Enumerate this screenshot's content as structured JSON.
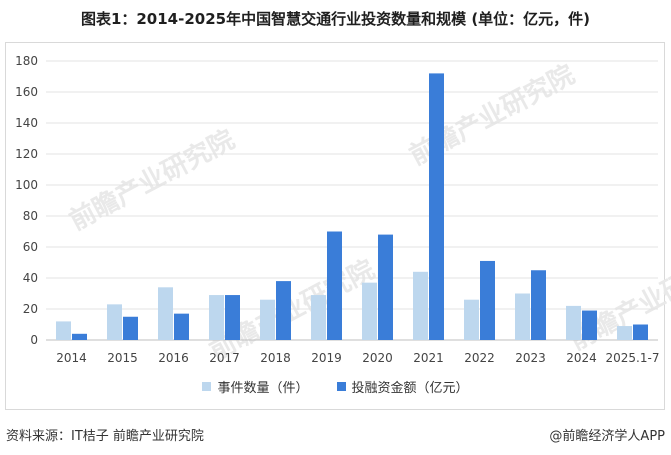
{
  "header": {
    "title": "图表1：2014-2025年中国智慧交通行业投资数量和规模 (单位：亿元，件)"
  },
  "footer": {
    "source": "资料来源：IT桔子 前瞻产业研究院",
    "brand": "@前瞻经济学人APP"
  },
  "watermark": {
    "text": "前瞻产业研究院"
  },
  "chart_data": {
    "type": "bar",
    "title": "图表1：2014-2025年中国智慧交通行业投资数量和规模 (单位：亿元，件)",
    "categories": [
      "2014",
      "2015",
      "2016",
      "2017",
      "2018",
      "2019",
      "2020",
      "2021",
      "2022",
      "2023",
      "2024",
      "2025.1-7"
    ],
    "series": [
      {
        "name": "事件数量（件）",
        "color": "#bdd7ee",
        "values": [
          12,
          23,
          34,
          29,
          26,
          29,
          37,
          44,
          26,
          30,
          22,
          9
        ]
      },
      {
        "name": "投融资金额（亿元）",
        "color": "#3a7dd8",
        "values": [
          4,
          15,
          17,
          29,
          38,
          70,
          68,
          172,
          51,
          45,
          19,
          10
        ]
      }
    ],
    "ylim": [
      0,
      180
    ],
    "yticks": [
      "0",
      "20",
      "40",
      "60",
      "80",
      "100",
      "120",
      "140",
      "160",
      "180"
    ],
    "grid": true,
    "legend_position": "bottom"
  }
}
